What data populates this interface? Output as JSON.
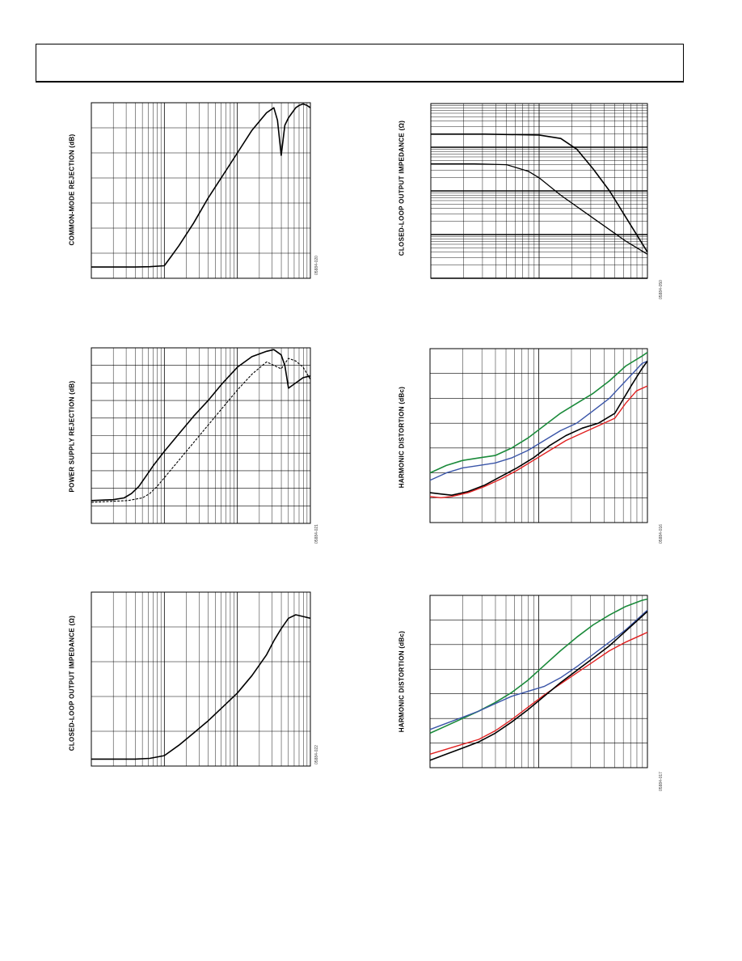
{
  "header": {},
  "charts": [
    {
      "id": "cmrr",
      "ylabel": "COMMON-MODE REJECTION (dB)",
      "code": "05884-020",
      "chart_data": {
        "type": "line",
        "xscale": "log",
        "xdecades": 3,
        "ylim": [
          0,
          7
        ],
        "grid": true,
        "series": [
          {
            "color": "#000000",
            "width": 1.6,
            "dash": "",
            "x": [
              0,
              0.6,
              0.8,
              1.0,
              1.1,
              1.2,
              1.4,
              1.6,
              1.8,
              2.0,
              2.2,
              2.4,
              2.5,
              2.55,
              2.6,
              2.65,
              2.7,
              2.75,
              2.8,
              2.85,
              2.9,
              2.95,
              3.0
            ],
            "y": [
              0.45,
              0.45,
              0.46,
              0.5,
              0.9,
              1.3,
              2.2,
              3.2,
              4.1,
              5.0,
              5.9,
              6.6,
              6.8,
              6.3,
              4.9,
              6.1,
              6.4,
              6.6,
              6.8,
              6.9,
              6.95,
              6.9,
              6.8
            ]
          }
        ]
      }
    },
    {
      "id": "psrr",
      "ylabel": "POWER SUPPLY REJECTION (dB)",
      "code": "05884-021",
      "chart_data": {
        "type": "line",
        "xscale": "log",
        "xdecades": 3,
        "ylim": [
          0,
          10
        ],
        "grid": true,
        "series": [
          {
            "color": "#000000",
            "width": 1.6,
            "dash": "",
            "x": [
              0,
              0.3,
              0.45,
              0.55,
              0.65,
              0.75,
              0.85,
              1.0,
              1.2,
              1.4,
              1.6,
              1.8,
              2.0,
              2.2,
              2.4,
              2.5,
              2.6,
              2.65,
              2.7,
              2.8,
              2.9,
              3.0
            ],
            "y": [
              1.3,
              1.35,
              1.45,
              1.7,
              2.1,
              2.7,
              3.3,
              4.1,
              5.1,
              6.1,
              7.0,
              8.0,
              8.9,
              9.5,
              9.8,
              9.9,
              9.6,
              9.0,
              7.7,
              8.0,
              8.3,
              8.4
            ]
          },
          {
            "color": "#000000",
            "width": 1.1,
            "dash": "3,1.6",
            "x": [
              0,
              0.5,
              0.7,
              0.8,
              0.9,
              1.0,
              1.2,
              1.4,
              1.6,
              1.8,
              2.0,
              2.2,
              2.4,
              2.6,
              2.7,
              2.8,
              2.9,
              3.0
            ],
            "y": [
              1.2,
              1.3,
              1.45,
              1.7,
              2.1,
              2.6,
              3.6,
              4.6,
              5.6,
              6.6,
              7.6,
              8.5,
              9.2,
              8.8,
              9.4,
              9.25,
              8.9,
              8.2
            ]
          }
        ]
      }
    },
    {
      "id": "zout-left",
      "ylabel": "CLOSED-LOOP OUTPUT IMPEDANCE (Ω)",
      "code": "05884-022",
      "chart_data": {
        "type": "line",
        "xscale": "log",
        "xdecades": 3,
        "ylim": [
          0,
          5
        ],
        "grid": true,
        "series": [
          {
            "color": "#000000",
            "width": 1.6,
            "dash": "",
            "x": [
              0,
              0.6,
              0.8,
              1.0,
              1.2,
              1.4,
              1.6,
              1.8,
              2.0,
              2.2,
              2.4,
              2.5,
              2.6,
              2.7,
              2.8,
              2.9,
              3.0
            ],
            "y": [
              0.2,
              0.2,
              0.22,
              0.3,
              0.6,
              0.95,
              1.3,
              1.7,
              2.1,
              2.6,
              3.2,
              3.6,
              3.95,
              4.25,
              4.35,
              4.3,
              4.25
            ]
          }
        ]
      }
    },
    {
      "id": "zout-right",
      "ylabel": "CLOSED-LOOP OUTPUT IMPEDANCE (Ω)",
      "code": "05884-050",
      "chart_data": {
        "type": "line",
        "xscale": "log",
        "xdecades": 2,
        "ylim": [
          0,
          4
        ],
        "ydecades": 4,
        "grid": true,
        "series": [
          {
            "color": "#000000",
            "width": 1.6,
            "dash": "",
            "x": [
              0,
              0.5,
              1.0,
              1.2,
              1.35,
              1.5,
              1.65,
              1.8,
              2.0
            ],
            "y": [
              3.3,
              3.3,
              3.28,
              3.2,
              2.95,
              2.5,
              2.0,
              1.4,
              0.6
            ]
          },
          {
            "color": "#000000",
            "width": 1.3,
            "dash": "",
            "x": [
              0,
              0.4,
              0.7,
              0.9,
              1.0,
              1.2,
              1.4,
              1.6,
              1.8,
              2.0
            ],
            "y": [
              2.62,
              2.62,
              2.6,
              2.45,
              2.3,
              1.9,
              1.55,
              1.2,
              0.85,
              0.55
            ]
          }
        ]
      }
    },
    {
      "id": "hd-1",
      "ylabel": "HARMONIC DISTORTION (dBc)",
      "code": "05884-016",
      "chart_data": {
        "type": "line",
        "xscale": "log",
        "xdecades": 2,
        "ylim": [
          0,
          7
        ],
        "grid": true,
        "series": [
          {
            "color": "#1a8a3a",
            "width": 1.6,
            "dash": "",
            "x": [
              0,
              0.15,
              0.3,
              0.45,
              0.6,
              0.75,
              0.9,
              1.05,
              1.2,
              1.35,
              1.5,
              1.65,
              1.8,
              1.95,
              2.0
            ],
            "y": [
              2.0,
              2.3,
              2.5,
              2.6,
              2.7,
              3.0,
              3.4,
              3.9,
              4.4,
              4.8,
              5.2,
              5.7,
              6.3,
              6.7,
              6.85
            ]
          },
          {
            "color": "#3a55a8",
            "width": 1.4,
            "dash": "",
            "x": [
              0,
              0.15,
              0.3,
              0.45,
              0.6,
              0.75,
              0.9,
              1.05,
              1.2,
              1.35,
              1.5,
              1.65,
              1.8,
              1.95,
              2.0
            ],
            "y": [
              1.7,
              2.0,
              2.2,
              2.3,
              2.4,
              2.6,
              2.9,
              3.3,
              3.7,
              4.0,
              4.5,
              5.0,
              5.7,
              6.4,
              6.5
            ]
          },
          {
            "color": "#000000",
            "width": 1.6,
            "dash": "",
            "x": [
              0,
              0.1,
              0.2,
              0.35,
              0.5,
              0.65,
              0.8,
              0.95,
              1.1,
              1.25,
              1.4,
              1.55,
              1.7,
              1.85,
              1.95,
              2.0
            ],
            "y": [
              1.2,
              1.15,
              1.1,
              1.25,
              1.5,
              1.85,
              2.2,
              2.6,
              3.1,
              3.5,
              3.8,
              4.0,
              4.4,
              5.5,
              6.2,
              6.5
            ]
          },
          {
            "color": "#e02020",
            "width": 1.4,
            "dash": "",
            "x": [
              0,
              0.1,
              0.2,
              0.35,
              0.5,
              0.65,
              0.8,
              0.95,
              1.1,
              1.25,
              1.4,
              1.55,
              1.7,
              1.8,
              1.9,
              2.0
            ],
            "y": [
              1.05,
              1.0,
              1.05,
              1.2,
              1.45,
              1.75,
              2.1,
              2.5,
              2.9,
              3.3,
              3.6,
              3.9,
              4.2,
              4.8,
              5.3,
              5.5
            ]
          }
        ]
      }
    },
    {
      "id": "hd-2",
      "ylabel": "HARMONIC DISTORTION (dBc)",
      "code": "05884-017",
      "chart_data": {
        "type": "line",
        "xscale": "log",
        "xdecades": 2,
        "ylim": [
          0,
          7
        ],
        "grid": true,
        "series": [
          {
            "color": "#1a8a3a",
            "width": 1.6,
            "dash": "",
            "x": [
              0,
              0.15,
              0.3,
              0.45,
              0.6,
              0.75,
              0.9,
              1.05,
              1.2,
              1.35,
              1.5,
              1.65,
              1.8,
              1.95,
              2.0
            ],
            "y": [
              1.4,
              1.7,
              2.0,
              2.3,
              2.65,
              3.05,
              3.55,
              4.15,
              4.75,
              5.3,
              5.8,
              6.2,
              6.55,
              6.8,
              6.85
            ]
          },
          {
            "color": "#3a55a8",
            "width": 1.4,
            "dash": "",
            "x": [
              0,
              0.15,
              0.3,
              0.45,
              0.6,
              0.75,
              0.9,
              1.05,
              1.2,
              1.35,
              1.5,
              1.65,
              1.8,
              1.95,
              2.0
            ],
            "y": [
              1.55,
              1.8,
              2.05,
              2.3,
              2.6,
              2.9,
              3.1,
              3.3,
              3.65,
              4.1,
              4.6,
              5.1,
              5.6,
              6.2,
              6.4
            ]
          },
          {
            "color": "#e02020",
            "width": 1.4,
            "dash": "",
            "x": [
              0,
              0.15,
              0.3,
              0.45,
              0.6,
              0.75,
              0.9,
              1.05,
              1.2,
              1.35,
              1.5,
              1.65,
              1.8,
              1.95,
              2.0
            ],
            "y": [
              0.55,
              0.75,
              0.95,
              1.15,
              1.5,
              1.95,
              2.45,
              2.95,
              3.4,
              3.85,
              4.3,
              4.75,
              5.1,
              5.4,
              5.5
            ]
          },
          {
            "color": "#000000",
            "width": 1.6,
            "dash": "",
            "x": [
              0,
              0.15,
              0.3,
              0.45,
              0.6,
              0.75,
              0.9,
              1.05,
              1.2,
              1.35,
              1.5,
              1.65,
              1.8,
              1.95,
              2.0
            ],
            "y": [
              0.3,
              0.55,
              0.8,
              1.05,
              1.4,
              1.85,
              2.35,
              2.9,
              3.45,
              3.95,
              4.45,
              4.95,
              5.55,
              6.15,
              6.35
            ]
          }
        ]
      }
    }
  ]
}
